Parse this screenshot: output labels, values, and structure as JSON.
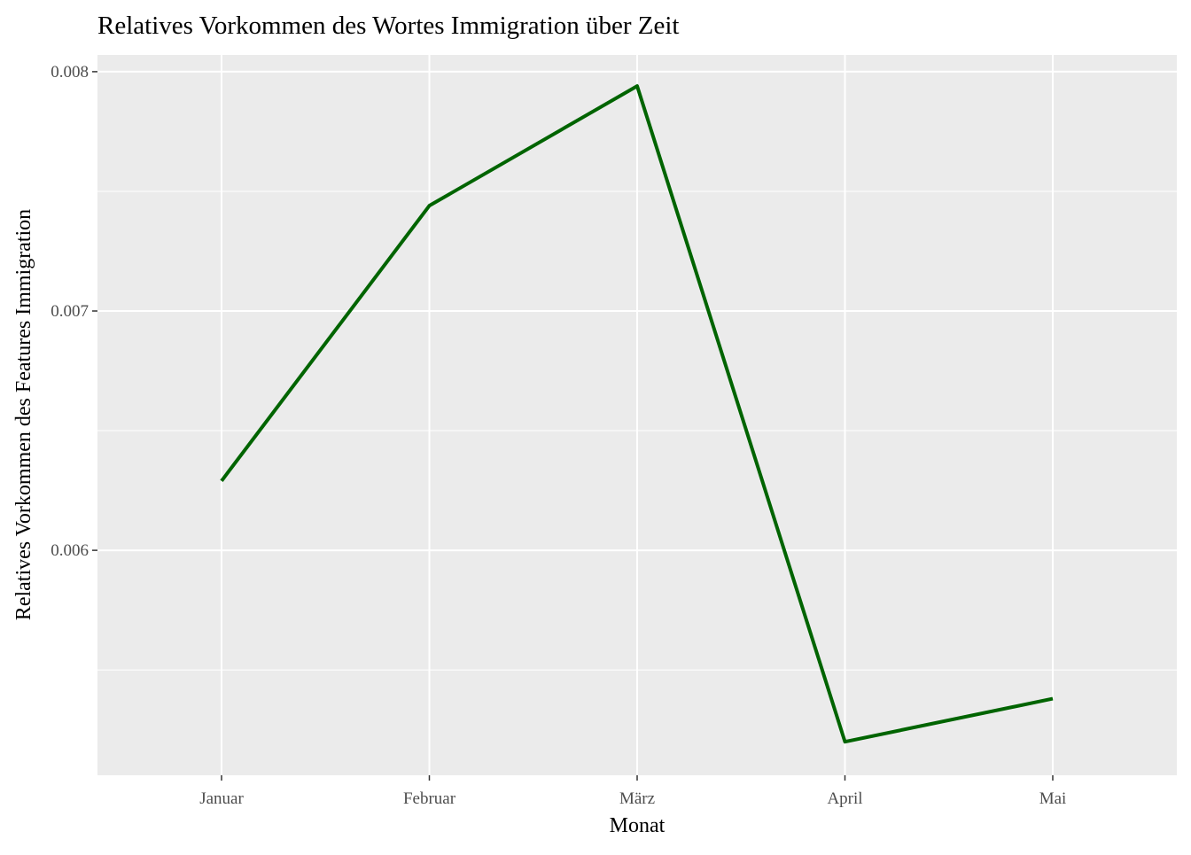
{
  "chart_data": {
    "type": "line",
    "title": "Relatives Vorkommen des Wortes Immigration über Zeit",
    "xlabel": "Monat",
    "ylabel": "Relatives Vorkommen des Features Immigration",
    "categories": [
      "Januar",
      "Februar",
      "März",
      "April",
      "Mai"
    ],
    "series": [
      {
        "values": [
          0.00629,
          0.00744,
          0.00794,
          0.0052,
          0.00538
        ],
        "color": "#006400"
      }
    ],
    "ylim": [
      0.00506,
      0.00807
    ],
    "yticks": [
      0.006,
      0.007,
      0.008
    ],
    "ytick_labels": [
      "0.006",
      "0.007",
      "0.008"
    ],
    "yminor": [
      0.0055,
      0.0065,
      0.0075
    ],
    "grid": true,
    "panel_background": "#EBEBEB",
    "grid_color": "#FFFFFF",
    "legend": "none"
  }
}
